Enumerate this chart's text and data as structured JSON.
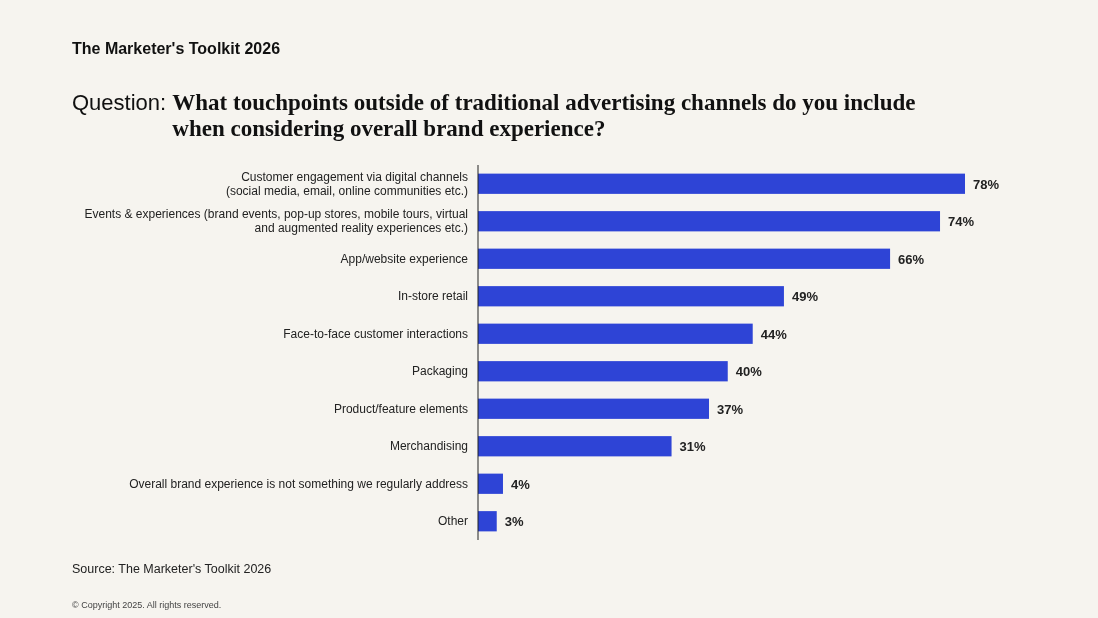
{
  "chart_data": {
    "type": "bar",
    "orientation": "horizontal",
    "title": "The Marketer's Toolkit 2026",
    "subtitle": "Question: What touchpoints outside of traditional advertising channels do you include when considering overall brand experience?",
    "categories": [
      "Customer engagement via digital channels (social media, email, online communities etc.)",
      "Events & experiences (brand events, pop-up stores, mobile tours, virtual and augmented reality experiences etc.)",
      "App/website experience",
      "In-store retail",
      "Face-to-face customer interactions",
      "Packaging",
      "Product/feature elements",
      "Merchandising",
      "Overall brand experience is not something we regularly address",
      "Other"
    ],
    "values": [
      78,
      74,
      66,
      49,
      44,
      40,
      37,
      31,
      4,
      3
    ],
    "value_labels": [
      "78%",
      "74%",
      "66%",
      "49%",
      "44%",
      "40%",
      "37%",
      "31%",
      "4%",
      "3%"
    ],
    "color": "#2e44d6",
    "annotations": [
      "Source: The Marketer's Toolkit 2026",
      "© Copyright 2025. All rights reserved."
    ]
  }
}
